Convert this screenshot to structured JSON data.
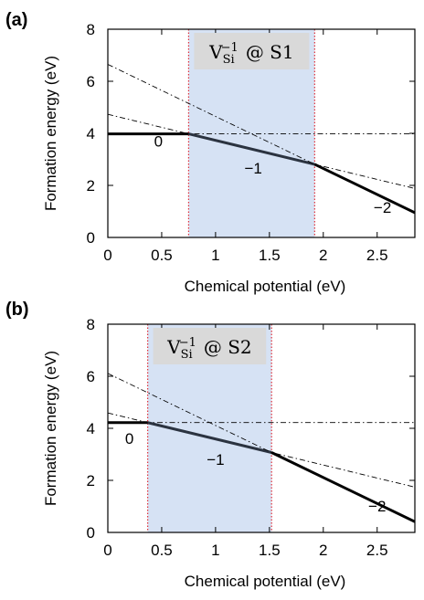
{
  "chart_data": [
    {
      "type": "line",
      "panel_label": "(a)",
      "title": "V_Si^-1 @ S1",
      "title_parts": {
        "base": "V",
        "sub": "Si",
        "sup": "−1",
        "rest": "@ S1"
      },
      "xlabel": "Chemical potential (eV)",
      "ylabel": "Formation energy (eV)",
      "xlim": [
        0,
        2.85
      ],
      "ylim": [
        0,
        8
      ],
      "xticks": [
        0,
        0.5,
        1,
        1.5,
        2,
        2.5
      ],
      "xtick_labels": [
        "0",
        "0.5",
        "1",
        "1.5",
        "2",
        "2.5"
      ],
      "yticks": [
        0,
        2,
        4,
        6,
        8
      ],
      "ytick_labels": [
        "0",
        "2",
        "4",
        "6",
        "8"
      ],
      "shaded_region": [
        0.75,
        1.92
      ],
      "shade_color": "#d6e2f4",
      "boundary_color": "#e0303a",
      "series": [
        {
          "charge_label": "0",
          "slope": 0,
          "intercept": 3.98,
          "stable_range": [
            0,
            0.75
          ]
        },
        {
          "charge_label": "−1",
          "slope": -1,
          "intercept": 4.73,
          "stable_range": [
            0.75,
            1.92
          ]
        },
        {
          "charge_label": "−2",
          "slope": -2,
          "intercept": 6.65,
          "stable_range": [
            1.92,
            2.85
          ]
        }
      ],
      "charge_label_positions": [
        {
          "text": "0",
          "x": 0.47,
          "y": 3.5
        },
        {
          "text": "−1",
          "x": 1.35,
          "y": 2.45
        },
        {
          "text": "−2",
          "x": 2.55,
          "y": 0.95
        }
      ]
    },
    {
      "type": "line",
      "panel_label": "(b)",
      "title": "V_Si^-1 @ S2",
      "title_parts": {
        "base": "V",
        "sub": "Si",
        "sup": "−1",
        "rest": "@ S2"
      },
      "xlabel": "Chemical potential (eV)",
      "ylabel": "Formation energy (eV)",
      "xlim": [
        0,
        2.85
      ],
      "ylim": [
        0,
        8
      ],
      "xticks": [
        0,
        0.5,
        1,
        1.5,
        2,
        2.5
      ],
      "xtick_labels": [
        "0",
        "0.5",
        "1",
        "1.5",
        "2",
        "2.5"
      ],
      "yticks": [
        0,
        2,
        4,
        6,
        8
      ],
      "ytick_labels": [
        "0",
        "2",
        "4",
        "6",
        "8"
      ],
      "shaded_region": [
        0.37,
        1.52
      ],
      "shade_color": "#d6e2f4",
      "boundary_color": "#e0303a",
      "series": [
        {
          "charge_label": "0",
          "slope": 0,
          "intercept": 4.22,
          "stable_range": [
            0,
            0.37
          ]
        },
        {
          "charge_label": "−1",
          "slope": -1,
          "intercept": 4.59,
          "stable_range": [
            0.37,
            1.52
          ]
        },
        {
          "charge_label": "−2",
          "slope": -2,
          "intercept": 6.11,
          "stable_range": [
            1.52,
            2.85
          ]
        }
      ],
      "charge_label_positions": [
        {
          "text": "0",
          "x": 0.2,
          "y": 3.4
        },
        {
          "text": "−1",
          "x": 1.0,
          "y": 2.6
        },
        {
          "text": "−2",
          "x": 2.5,
          "y": 0.8
        }
      ]
    }
  ]
}
